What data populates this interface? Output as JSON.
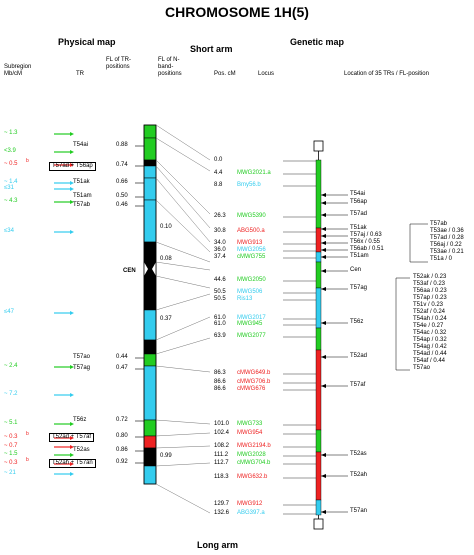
{
  "title": "CHROMOSOME 1H(5)",
  "headers": {
    "physical_map": "Physical map",
    "short_arm": "Short arm",
    "genetic_map": "Genetic map",
    "long_arm": "Long arm",
    "subregion": "Subregion Mb/cM",
    "tr": "TR",
    "fl_tr": "FL of TR-positions",
    "fl_nband": "FL of N-band-positions",
    "pos_cm": "Pos. cM",
    "locus": "Locus",
    "location": "Location of 35 TRs / FL-position"
  },
  "colors": {
    "green": "#22cc22",
    "cyan": "#33ccee",
    "red": "#ee2222",
    "black": "#000000"
  },
  "subregions": [
    {
      "label": "~ 1.3",
      "color": "green"
    },
    {
      "label": "<3.9",
      "color": "green"
    },
    {
      "label": "~ 0.5",
      "sup": "b",
      "color": "red"
    },
    {
      "label": "~ 1.4",
      "color": "cyan"
    },
    {
      "label": "≤31",
      "color": "cyan"
    },
    {
      "label": "~ 4.3",
      "color": "green"
    },
    {
      "label": "≤34",
      "color": "cyan"
    },
    {
      "label": "≤47",
      "color": "cyan"
    },
    {
      "label": "~ 2.4",
      "color": "green"
    },
    {
      "label": "~ 7.2",
      "color": "cyan"
    },
    {
      "label": "~ 5.1",
      "color": "green"
    },
    {
      "label": "~ 0.3",
      "sup": "b",
      "color": "red"
    },
    {
      "label": "~ 0.7",
      "color": "red"
    },
    {
      "label": "~ 1.5",
      "color": "green"
    },
    {
      "label": "~ 0.3",
      "sup": "b",
      "color": "red"
    },
    {
      "label": "~ 21",
      "color": "cyan"
    }
  ],
  "tr_labels": [
    {
      "label": "T54ai",
      "fl": "0.88"
    },
    {
      "label": "T57ad + T56ap",
      "fl": "0.74",
      "boxed": true
    },
    {
      "label": "T51ak",
      "fl": "0.66"
    },
    {
      "label": "T51am",
      "fl": "0.50"
    },
    {
      "label": "T57ab",
      "fl": "0.46"
    },
    {
      "label": "T57ao",
      "fl": "0.44"
    },
    {
      "label": "T57ag",
      "fl": "0.47"
    },
    {
      "label": "T56z",
      "fl": "0.72"
    },
    {
      "label": "T52ad + T57af",
      "fl": "0.80",
      "boxed": true
    },
    {
      "label": "T52as",
      "fl": "0.86"
    },
    {
      "label": "T52ah + T57an",
      "fl": "0.92",
      "boxed": true
    }
  ],
  "cen_label": "CEN",
  "nband_fl": [
    "0.10",
    "0.08",
    "0.37",
    "0.99"
  ],
  "loci": [
    {
      "pos": "0.0",
      "name": "",
      "color": "black"
    },
    {
      "pos": "4.4",
      "name": "MWG2021.a",
      "color": "green"
    },
    {
      "pos": "8.8",
      "name": "Bmy56.b",
      "color": "cyan"
    },
    {
      "pos": "26.3",
      "name": "MWG5390",
      "color": "green"
    },
    {
      "pos": "30.8",
      "name": "ABG500.a",
      "color": "red"
    },
    {
      "pos": "34.0",
      "name": "MWG913",
      "color": "red"
    },
    {
      "pos": "36.0",
      "name": "MWG2056",
      "color": "cyan"
    },
    {
      "pos": "37.4",
      "name": "cMWG755",
      "color": "green"
    },
    {
      "pos": "44.6",
      "name": "MWG2050",
      "color": "green"
    },
    {
      "pos": "50.5",
      "name": "MWG506",
      "color": "cyan"
    },
    {
      "pos": "50.5",
      "name": "Ris13",
      "color": "cyan"
    },
    {
      "pos": "61.0",
      "name": "MWG2017",
      "color": "cyan"
    },
    {
      "pos": "61.0",
      "name": "MWG945",
      "color": "green"
    },
    {
      "pos": "63.9",
      "name": "MWG2077",
      "color": "green"
    },
    {
      "pos": "86.3",
      "name": "cMWG649.b",
      "color": "red"
    },
    {
      "pos": "86.6",
      "name": "cMWG706.b",
      "color": "red"
    },
    {
      "pos": "86.6",
      "name": "cMWG676",
      "color": "red"
    },
    {
      "pos": "101.0",
      "name": "MWG733",
      "color": "green"
    },
    {
      "pos": "102.4",
      "name": "MWG954",
      "color": "red"
    },
    {
      "pos": "108.2",
      "name": "MWG2194.b",
      "color": "red"
    },
    {
      "pos": "111.2",
      "name": "MWG2028",
      "color": "green"
    },
    {
      "pos": "112.7",
      "name": "cMWG704.b",
      "color": "green"
    },
    {
      "pos": "118.3",
      "name": "MWG632.b",
      "color": "red"
    },
    {
      "pos": "129.7",
      "name": "MWG912",
      "color": "red"
    },
    {
      "pos": "132.6",
      "name": "ABG397.a",
      "color": "cyan"
    }
  ],
  "right_trs": [
    {
      "label": "T54ai"
    },
    {
      "label": "T56ap"
    },
    {
      "label": "T57ad"
    },
    {
      "label": "T51ak"
    },
    {
      "label": "T57aj / 0.63"
    },
    {
      "label": "T56x / 0.55"
    },
    {
      "label": "T56ab / 0.51"
    },
    {
      "label": "T51am"
    },
    {
      "label": "Cen"
    },
    {
      "label": "T57ag"
    },
    {
      "label": "T56z"
    },
    {
      "label": "T52ad"
    },
    {
      "label": "T57af"
    },
    {
      "label": "T52as"
    },
    {
      "label": "T52ah"
    },
    {
      "label": "T57an"
    }
  ],
  "short_arm_fl": [
    {
      "label": "T57ab"
    },
    {
      "label": "T53ae / 0.36"
    },
    {
      "label": "T57ad / 0.28"
    },
    {
      "label": "T56aj / 0.22"
    },
    {
      "label": "T53ae / 0.21"
    },
    {
      "label": "T51a / 0"
    }
  ],
  "long_arm_fl": [
    {
      "label": "T52ak / 0.23"
    },
    {
      "label": "T53af / 0.23"
    },
    {
      "label": "T56aa / 0.23"
    },
    {
      "label": "T57ap / 0.23"
    },
    {
      "label": "T51v / 0.23"
    },
    {
      "label": "T52af / 0.24"
    },
    {
      "label": "T54ah / 0.24"
    },
    {
      "label": "T54e / 0.27"
    },
    {
      "label": "T54ac / 0.32"
    },
    {
      "label": "T54ap / 0.32"
    },
    {
      "label": "T54ag / 0.42"
    },
    {
      "label": "T54ad / 0.44"
    },
    {
      "label": "T54af / 0.44"
    },
    {
      "label": "T57ao"
    }
  ]
}
